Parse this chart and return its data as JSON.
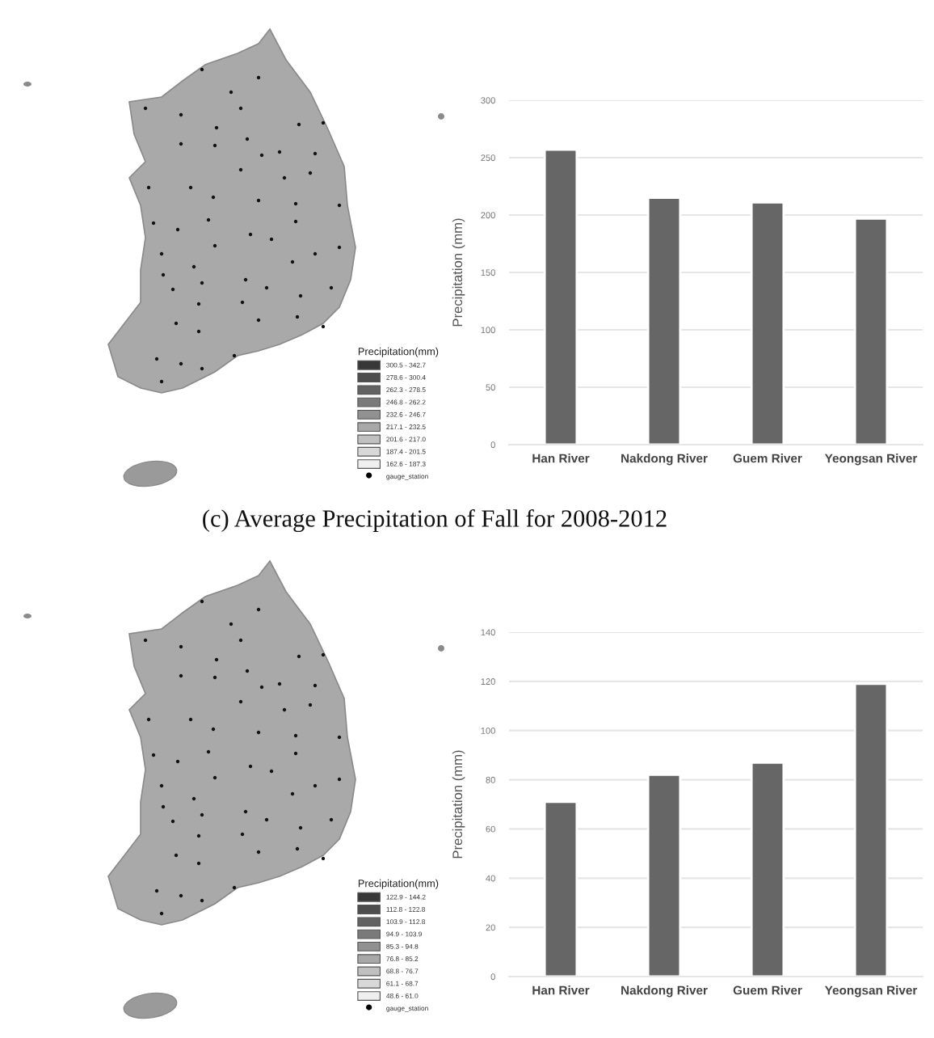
{
  "chart_data": [
    {
      "type": "other",
      "legend_title": "Precipitation(mm)",
      "legend": "bottom right",
      "annotations": [
        "(c) Average Precipitation of Fall for 2008-2012"
      ],
      "series": [
        {
          "name": "300.5 - 342.7",
          "color": "#383838"
        },
        {
          "name": "278.6 - 300.4",
          "color": "#4d4d4d"
        },
        {
          "name": "262.3 - 278.5",
          "color": "#626262"
        },
        {
          "name": "246.8 - 262.2",
          "color": "#7a7a7a"
        },
        {
          "name": "232.6 - 246.7",
          "color": "#919191"
        },
        {
          "name": "217.1 - 232.5",
          "color": "#a8a8a8"
        },
        {
          "name": "201.6 - 217.0",
          "color": "#c0c0c0"
        },
        {
          "name": "187.4 - 201.5",
          "color": "#d8d8d8"
        },
        {
          "name": "162.6 - 187.3",
          "color": "#efefef"
        },
        {
          "name": "gauge_station",
          "color": "#000000",
          "type": "scatter",
          "marker": "circle"
        }
      ]
    },
    {
      "type": "bar",
      "categories": [
        "Han River",
        "Nakdong River",
        "Guem River",
        "Yeongsan River"
      ],
      "values": [
        257,
        215,
        211,
        197
      ],
      "color": "#666666",
      "ylabel": "Precipitation (mm)",
      "ylim": [
        0,
        300
      ],
      "yticks": [
        0,
        50,
        100,
        150,
        200,
        250,
        300
      ],
      "grid": "y"
    },
    {
      "type": "other",
      "legend_title": "Precipitation(mm)",
      "legend": "bottom right",
      "series": [
        {
          "name": "122.9 - 144.2",
          "color": "#383838"
        },
        {
          "name": "112.8 - 122.8",
          "color": "#4d4d4d"
        },
        {
          "name": "103.9 - 112.8",
          "color": "#626262"
        },
        {
          "name": "94.9 - 103.9",
          "color": "#7a7a7a"
        },
        {
          "name": "85.3 - 94.8",
          "color": "#919191"
        },
        {
          "name": "76.8 - 85.2",
          "color": "#a8a8a8"
        },
        {
          "name": "68.8 - 76.7",
          "color": "#c0c0c0"
        },
        {
          "name": "61.1 - 68.7",
          "color": "#d8d8d8"
        },
        {
          "name": "48.6 - 61.0",
          "color": "#efefef"
        },
        {
          "name": "gauge_station",
          "color": "#000000",
          "type": "scatter",
          "marker": "circle"
        }
      ]
    },
    {
      "type": "bar",
      "categories": [
        "Han River",
        "Nakdong River",
        "Guem River",
        "Yeongsan River"
      ],
      "values": [
        71,
        82,
        87,
        119
      ],
      "color": "#666666",
      "ylabel": "Precipitation (mm)",
      "ylim": [
        0,
        140
      ],
      "yticks": [
        0,
        20,
        40,
        60,
        80,
        100,
        120,
        140
      ],
      "grid": "y"
    }
  ]
}
